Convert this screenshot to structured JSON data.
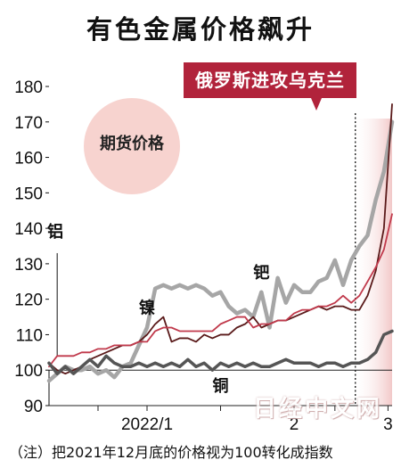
{
  "title": "有色金属价格飙升",
  "event": {
    "label": "俄罗斯进攻乌克兰",
    "x": 37.5
  },
  "legend_circle": {
    "label": "期货价格"
  },
  "watermark": "日经中文网",
  "footnote": "（注）把2021年12月底的价格视为100转化成指数",
  "colors": {
    "palladium": "#a6a6a6",
    "nickel": "#5a1a1a",
    "aluminum": "#c0394b",
    "copper": "#555555",
    "event_band": "#f2c9c9",
    "event_badge": "#b1233b",
    "circle": "#f7d3cf"
  },
  "chart_data": {
    "type": "line",
    "ylim": [
      90,
      180
    ],
    "yticks": [
      90,
      100,
      110,
      120,
      130,
      140,
      150,
      160,
      170,
      180
    ],
    "xlim": [
      0,
      42
    ],
    "xticks": [
      {
        "x": 6,
        "label": ""
      },
      {
        "x": 12,
        "label": "2022/1"
      },
      {
        "x": 21,
        "label": ""
      },
      {
        "x": 30,
        "label": "2"
      },
      {
        "x": 35,
        "label": ""
      },
      {
        "x": 41.5,
        "label": "3"
      }
    ],
    "baseline": 100,
    "series": [
      {
        "name": "钯",
        "key": "palladium",
        "width": 4.5,
        "label_pos": [
          26,
          126
        ],
        "x": [
          0,
          1,
          2,
          3,
          4,
          5,
          6,
          7,
          8,
          9,
          10,
          11,
          12,
          13,
          14,
          15,
          16,
          17,
          18,
          19,
          20,
          21,
          22,
          23,
          24,
          25,
          26,
          27,
          28,
          29,
          30,
          31,
          32,
          33,
          34,
          35,
          36,
          37,
          38,
          39,
          40,
          41,
          42
        ],
        "y": [
          97,
          99,
          101,
          100,
          100,
          101,
          99,
          100,
          98,
          101,
          102,
          107,
          112,
          123,
          124,
          123,
          124,
          123,
          124,
          123,
          121,
          122,
          118,
          116,
          117,
          115,
          122,
          112,
          126,
          119,
          124,
          122,
          122,
          125,
          126,
          131,
          124,
          131,
          135,
          138,
          148,
          156,
          170
        ]
      },
      {
        "name": "镍",
        "key": "nickel",
        "width": 1.8,
        "label_pos": [
          12,
          116
        ],
        "x": [
          0,
          1,
          2,
          3,
          4,
          5,
          6,
          7,
          8,
          9,
          10,
          11,
          12,
          13,
          14,
          15,
          16,
          17,
          18,
          19,
          20,
          21,
          22,
          23,
          24,
          25,
          26,
          27,
          28,
          29,
          30,
          31,
          32,
          33,
          34,
          35,
          36,
          37,
          38,
          39,
          40,
          41,
          42
        ],
        "y": [
          102,
          100,
          99,
          100,
          101,
          103,
          104,
          105,
          106,
          107,
          107,
          108,
          110,
          113,
          115,
          108,
          109,
          109,
          108,
          110,
          109,
          110,
          110,
          112,
          113,
          115,
          112,
          113,
          114,
          114,
          115,
          116,
          117,
          118,
          117,
          118,
          118,
          117,
          117,
          121,
          128,
          140,
          175
        ]
      },
      {
        "name": "",
        "key": "aluminum",
        "width": 1.8,
        "label_pos": null,
        "x": [
          0,
          1,
          2,
          3,
          4,
          5,
          6,
          7,
          8,
          9,
          10,
          11,
          12,
          13,
          14,
          15,
          16,
          17,
          18,
          19,
          20,
          21,
          22,
          23,
          24,
          25,
          26,
          27,
          28,
          29,
          30,
          31,
          32,
          33,
          34,
          35,
          36,
          37,
          38,
          39,
          40,
          41,
          42
        ],
        "y": [
          101,
          104,
          104,
          104,
          105,
          105,
          106,
          106,
          107,
          107,
          107,
          108,
          108,
          111,
          112,
          112,
          111,
          111,
          111,
          111,
          111,
          113,
          114,
          115,
          115,
          112,
          113,
          113,
          114,
          114,
          116,
          117,
          117,
          118,
          118,
          119,
          121,
          119,
          121,
          125,
          129,
          134,
          144
        ]
      },
      {
        "name": "铜",
        "key": "copper",
        "width": 3.5,
        "label_pos": [
          21,
          94
        ],
        "x": [
          0,
          1,
          2,
          3,
          4,
          5,
          6,
          7,
          8,
          9,
          10,
          11,
          12,
          13,
          14,
          15,
          16,
          17,
          18,
          19,
          20,
          21,
          22,
          23,
          24,
          25,
          26,
          27,
          28,
          29,
          30,
          31,
          32,
          33,
          34,
          35,
          36,
          37,
          38,
          39,
          40,
          41,
          42
        ],
        "y": [
          102,
          99,
          101,
          99,
          101,
          103,
          101,
          104,
          102,
          101,
          101,
          102,
          101,
          102,
          101,
          102,
          101,
          103,
          101,
          102,
          100,
          102,
          101,
          102,
          101,
          102,
          101,
          101,
          102,
          103,
          102,
          102,
          102,
          101,
          102,
          102,
          101,
          102,
          102,
          103,
          105,
          110,
          111
        ]
      }
    ]
  }
}
